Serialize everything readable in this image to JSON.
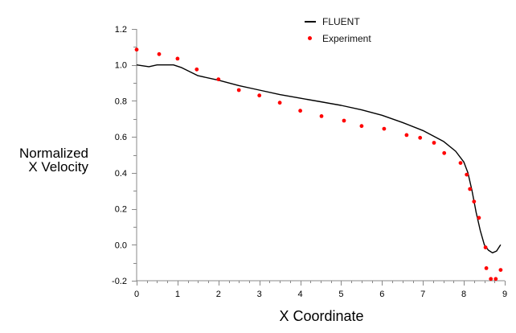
{
  "chart_data": {
    "type": "line",
    "title": "",
    "xlabel": "X Coordinate",
    "ylabel_lines": [
      "Normalized",
      "X Velocity"
    ],
    "xlim": [
      0,
      9
    ],
    "ylim": [
      -0.2,
      1.2
    ],
    "x_ticks": [
      "0",
      "1",
      "2",
      "3",
      "4",
      "5",
      "6",
      "7",
      "8",
      "9"
    ],
    "y_ticks": [
      "1.2",
      "1.0",
      "0.8",
      "0.6",
      "0.4",
      "0.2",
      "0.0",
      "-0.2"
    ],
    "grid": false,
    "legend_position": "top-center",
    "series": [
      {
        "name": "FLUENT",
        "style": "line",
        "color": "#000000",
        "x": [
          0,
          0.3,
          0.5,
          0.9,
          1.1,
          1.5,
          2.0,
          2.5,
          3.0,
          3.5,
          4.0,
          4.5,
          5.0,
          5.5,
          6.0,
          6.5,
          7.0,
          7.5,
          7.8,
          8.0,
          8.1,
          8.2,
          8.3,
          8.4,
          8.5,
          8.6,
          8.7,
          8.8,
          8.9
        ],
        "y": [
          1.0,
          0.99,
          1.0,
          1.0,
          0.985,
          0.94,
          0.915,
          0.885,
          0.86,
          0.835,
          0.815,
          0.795,
          0.775,
          0.75,
          0.72,
          0.68,
          0.635,
          0.575,
          0.52,
          0.46,
          0.4,
          0.3,
          0.18,
          0.08,
          0.0,
          -0.03,
          -0.045,
          -0.035,
          0.0
        ]
      },
      {
        "name": "Experiment",
        "style": "scatter",
        "color": "#ff0000",
        "x": [
          0,
          0.55,
          1.0,
          1.47,
          2.0,
          2.5,
          3.0,
          3.5,
          4.0,
          4.52,
          5.07,
          5.5,
          6.05,
          6.6,
          6.93,
          7.27,
          7.52,
          7.92,
          8.07,
          8.15,
          8.25,
          8.37,
          8.53,
          8.55,
          8.66,
          8.78,
          8.9
        ],
        "y": [
          1.085,
          1.06,
          1.035,
          0.975,
          0.92,
          0.86,
          0.83,
          0.79,
          0.745,
          0.715,
          0.69,
          0.66,
          0.645,
          0.61,
          0.595,
          0.567,
          0.51,
          0.455,
          0.39,
          0.31,
          0.24,
          0.15,
          -0.015,
          -0.13,
          -0.19,
          -0.19,
          -0.14
        ]
      }
    ]
  },
  "legend": {
    "items": [
      {
        "label": "FLUENT"
      },
      {
        "label": "Experiment"
      }
    ]
  }
}
